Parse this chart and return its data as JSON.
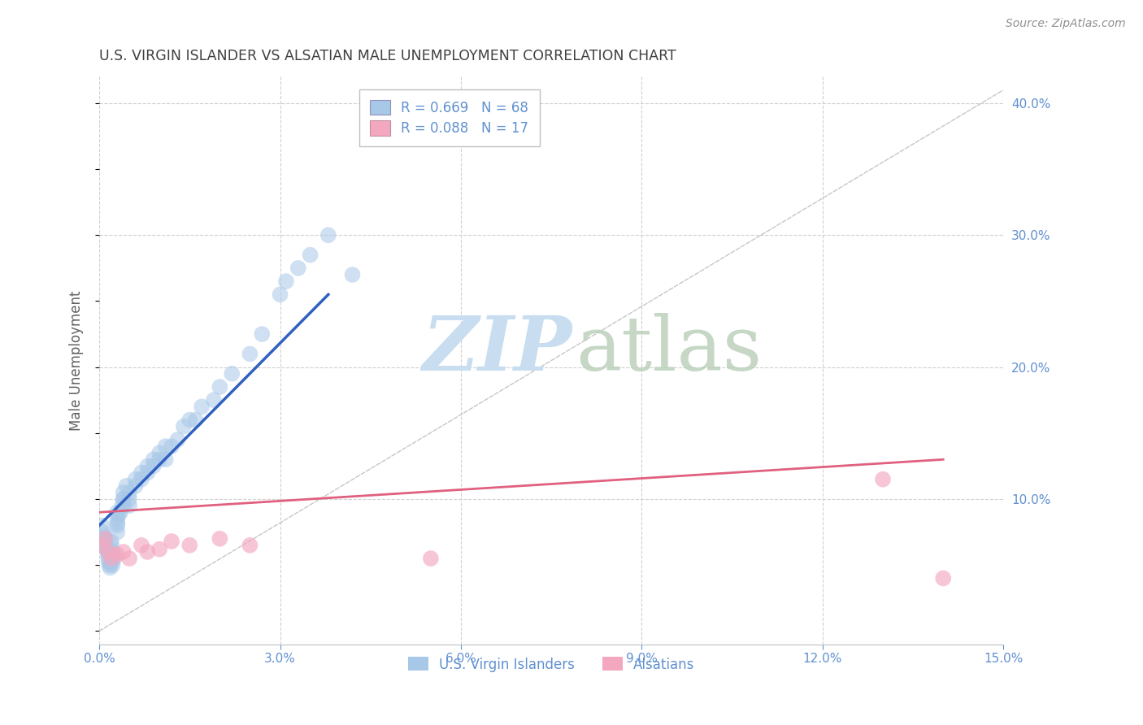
{
  "title": "U.S. VIRGIN ISLANDER VS ALSATIAN MALE UNEMPLOYMENT CORRELATION CHART",
  "source": "Source: ZipAtlas.com",
  "ylabel": "Male Unemployment",
  "xlim": [
    0,
    0.15
  ],
  "ylim": [
    -0.01,
    0.42
  ],
  "xticks": [
    0.0,
    0.03,
    0.06,
    0.09,
    0.12,
    0.15
  ],
  "yticks": [
    0.1,
    0.2,
    0.3,
    0.4
  ],
  "xtick_labels": [
    "0.0%",
    "3.0%",
    "6.0%",
    "9.0%",
    "12.0%",
    "15.0%"
  ],
  "ytick_labels": [
    "10.0%",
    "20.0%",
    "30.0%",
    "40.0%"
  ],
  "legend1_r": "0.669",
  "legend1_n": "68",
  "legend2_r": "0.088",
  "legend2_n": "17",
  "legend1_color": "#a8c8e8",
  "legend2_color": "#f4a8c0",
  "line1_color": "#3060c0",
  "line2_color": "#e06080",
  "diag_color": "#b8b8b8",
  "label1": "U.S. Virgin Islanders",
  "label2": "Alsatians",
  "background_color": "#ffffff",
  "grid_color": "#d0d0d0",
  "title_color": "#404040",
  "axis_color": "#6090d0",
  "vi_x": [
    0.0005,
    0.0006,
    0.0007,
    0.0008,
    0.0009,
    0.001,
    0.001,
    0.0012,
    0.0013,
    0.0014,
    0.0015,
    0.0015,
    0.0016,
    0.0017,
    0.0018,
    0.002,
    0.002,
    0.002,
    0.002,
    0.0022,
    0.0023,
    0.0025,
    0.0025,
    0.003,
    0.003,
    0.003,
    0.003,
    0.003,
    0.0032,
    0.0035,
    0.0038,
    0.004,
    0.004,
    0.004,
    0.0042,
    0.0045,
    0.005,
    0.005,
    0.005,
    0.006,
    0.006,
    0.007,
    0.007,
    0.008,
    0.008,
    0.009,
    0.009,
    0.01,
    0.01,
    0.011,
    0.011,
    0.012,
    0.013,
    0.014,
    0.015,
    0.016,
    0.017,
    0.019,
    0.02,
    0.022,
    0.025,
    0.027,
    0.03,
    0.031,
    0.033,
    0.035,
    0.038,
    0.042
  ],
  "vi_y": [
    0.08,
    0.075,
    0.07,
    0.072,
    0.068,
    0.065,
    0.07,
    0.065,
    0.062,
    0.06,
    0.058,
    0.055,
    0.052,
    0.05,
    0.048,
    0.065,
    0.068,
    0.055,
    0.052,
    0.05,
    0.06,
    0.055,
    0.058,
    0.075,
    0.08,
    0.082,
    0.085,
    0.09,
    0.088,
    0.09,
    0.095,
    0.1,
    0.105,
    0.1,
    0.095,
    0.11,
    0.1,
    0.095,
    0.105,
    0.11,
    0.115,
    0.12,
    0.115,
    0.12,
    0.125,
    0.13,
    0.125,
    0.13,
    0.135,
    0.13,
    0.14,
    0.14,
    0.145,
    0.155,
    0.16,
    0.16,
    0.17,
    0.175,
    0.185,
    0.195,
    0.21,
    0.225,
    0.255,
    0.265,
    0.275,
    0.285,
    0.3,
    0.27
  ],
  "als_x": [
    0.0005,
    0.001,
    0.0015,
    0.002,
    0.003,
    0.004,
    0.005,
    0.007,
    0.008,
    0.01,
    0.012,
    0.015,
    0.02,
    0.025,
    0.055,
    0.13,
    0.14
  ],
  "als_y": [
    0.065,
    0.07,
    0.06,
    0.055,
    0.058,
    0.06,
    0.055,
    0.065,
    0.06,
    0.062,
    0.068,
    0.065,
    0.07,
    0.065,
    0.055,
    0.115,
    0.04
  ],
  "vi_line": [
    0.0,
    0.08,
    0.038,
    0.255
  ],
  "als_line": [
    0.0,
    0.09,
    0.14,
    0.13
  ]
}
